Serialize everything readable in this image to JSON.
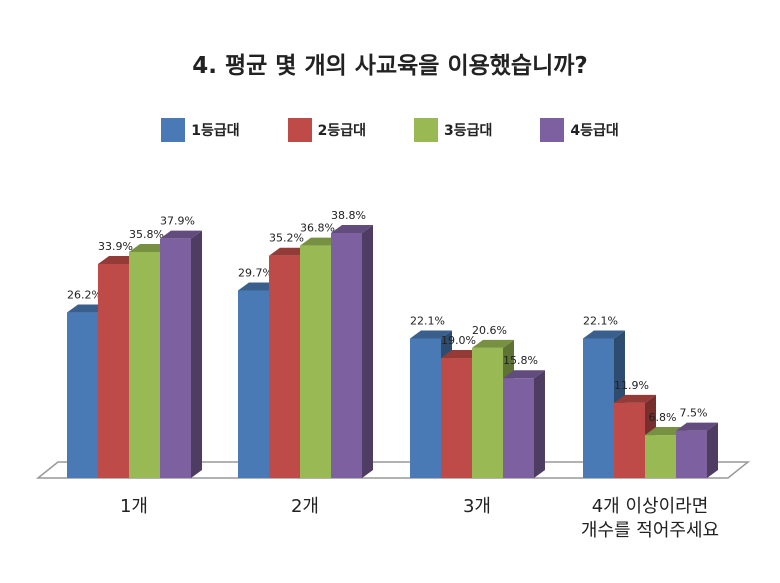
{
  "chart_data": {
    "type": "bar",
    "title": "4. 평균 몇 개의 사교육을 이용했습니까?",
    "categories": [
      "1개",
      "2개",
      "3개",
      "4개 이상이라면\n개수를 적어주세요"
    ],
    "series": [
      {
        "name": "1등급대",
        "color": "#4a7ab5",
        "values": [
          26.2,
          29.7,
          22.1,
          22.1
        ],
        "labels": [
          "26.2%",
          "29.7%",
          "22.1%",
          "22.1%"
        ]
      },
      {
        "name": "2등급대",
        "color": "#be4b48",
        "values": [
          33.9,
          35.2,
          19.0,
          11.9
        ],
        "labels": [
          "33.9%",
          "35.2%",
          "19.0%",
          "11.9%"
        ]
      },
      {
        "name": "3등급대",
        "color": "#98b954",
        "values": [
          35.8,
          36.8,
          20.6,
          6.8
        ],
        "labels": [
          "35.8%",
          "36.8%",
          "20.6%",
          "6.8%"
        ]
      },
      {
        "name": "4등급대",
        "color": "#7d60a0",
        "values": [
          37.9,
          38.8,
          15.8,
          7.5
        ],
        "labels": [
          "37.9%",
          "38.8%",
          "15.8%",
          "7.5%"
        ]
      }
    ],
    "ylim": [
      0,
      40
    ],
    "legend": "top"
  }
}
